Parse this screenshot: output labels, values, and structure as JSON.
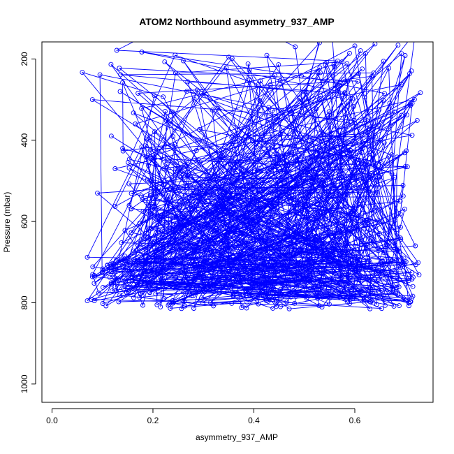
{
  "chart_data": {
    "type": "scatter",
    "title": "ATOM2 Northbound asymmetry_937_AMP",
    "xlabel": "asymmetry_937_AMP",
    "ylabel": "Pressure (mbar)",
    "xlim": [
      -0.02,
      0.755
    ],
    "ylim": [
      1045,
      158
    ],
    "y_reversed": true,
    "x_ticks": [
      0.0,
      0.2,
      0.4,
      0.6
    ],
    "x_tick_labels": [
      "0.0",
      "0.2",
      "0.4",
      "0.6"
    ],
    "y_ticks": [
      200,
      400,
      600,
      800,
      1000
    ],
    "y_tick_labels": [
      "200",
      "400",
      "600",
      "800",
      "1000"
    ],
    "grid": false,
    "legend": "none",
    "series_color": "#0000ff",
    "marker": "open-circle",
    "connect_points": true,
    "approximate": true,
    "points_count_estimated": 740,
    "points_sample": [
      [
        0.06,
        233
      ],
      [
        0.08,
        300
      ],
      [
        0.135,
        280
      ],
      [
        0.14,
        258
      ],
      [
        0.165,
        360
      ],
      [
        0.14,
        420
      ],
      [
        0.125,
        470
      ],
      [
        0.09,
        530
      ],
      [
        0.125,
        563
      ],
      [
        0.07,
        688
      ],
      [
        0.07,
        795
      ],
      [
        0.08,
        736
      ],
      [
        0.72,
        134
      ],
      [
        0.73,
        283
      ],
      [
        0.71,
        310
      ],
      [
        0.7,
        465
      ],
      [
        0.69,
        550
      ],
      [
        0.72,
        660
      ],
      [
        0.715,
        760
      ],
      [
        0.7,
        793
      ],
      [
        0.63,
        815
      ],
      [
        0.47,
        815
      ],
      [
        0.18,
        806
      ],
      [
        0.31,
        63
      ],
      [
        0.55,
        58
      ],
      [
        0.6,
        168
      ],
      [
        0.64,
        163
      ],
      [
        0.53,
        160
      ]
    ]
  }
}
